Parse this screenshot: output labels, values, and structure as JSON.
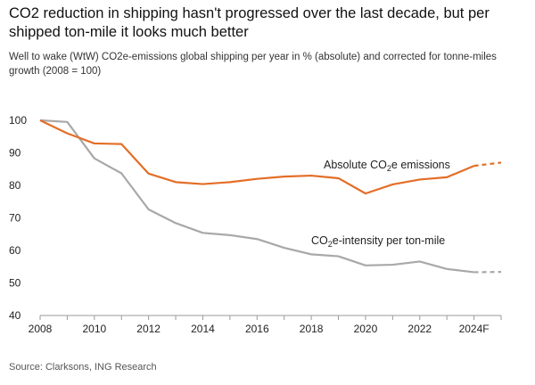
{
  "chart_data": {
    "type": "line",
    "title": "CO2 reduction in shipping hasn't progressed over the last decade, but per shipped ton-mile it looks much better",
    "subtitle": "Well to wake (WtW) CO2e-emissions global shipping per year in % (absolute) and corrected for tonne-miles growth (2008 = 100)",
    "source": "Source: Clarksons, ING Research",
    "x": [
      2008,
      2009,
      2010,
      2011,
      2012,
      2013,
      2014,
      2015,
      2016,
      2017,
      2018,
      2019,
      2020,
      2021,
      2022,
      2023,
      2024,
      2025
    ],
    "x_tick_values": [
      2008,
      2010,
      2012,
      2014,
      2016,
      2018,
      2020,
      2022,
      2024
    ],
    "x_tick_labels": [
      "2008",
      "2010",
      "2012",
      "2014",
      "2016",
      "2018",
      "2020",
      "2022",
      "2024F"
    ],
    "y_ticks": [
      40,
      50,
      60,
      70,
      80,
      90,
      100
    ],
    "xlim": [
      2008,
      2025
    ],
    "ylim": [
      40,
      100
    ],
    "grid": false,
    "series": [
      {
        "label_prefix": "Absolute CO",
        "label_sub": "2",
        "label_suffix": "e emissions",
        "color": "#e36e27",
        "values": [
          100,
          96,
          92.9,
          92.7,
          83.6,
          81,
          80.4,
          81,
          82,
          82.7,
          83,
          82.2,
          77.5,
          80.3,
          81.8,
          82.5,
          86,
          87
        ],
        "forecast_from_index": 16
      },
      {
        "label_prefix": "CO",
        "label_sub": "2",
        "label_suffix": "e-intensity per ton-mile",
        "color": "#a8a8a8",
        "values": [
          100,
          99.5,
          88.3,
          83.7,
          72.6,
          68.4,
          65.4,
          64.7,
          63.5,
          60.8,
          58.8,
          58.2,
          55.4,
          55.6,
          56.6,
          54.3,
          53.3,
          53.4
        ],
        "forecast_from_index": 16
      }
    ]
  }
}
